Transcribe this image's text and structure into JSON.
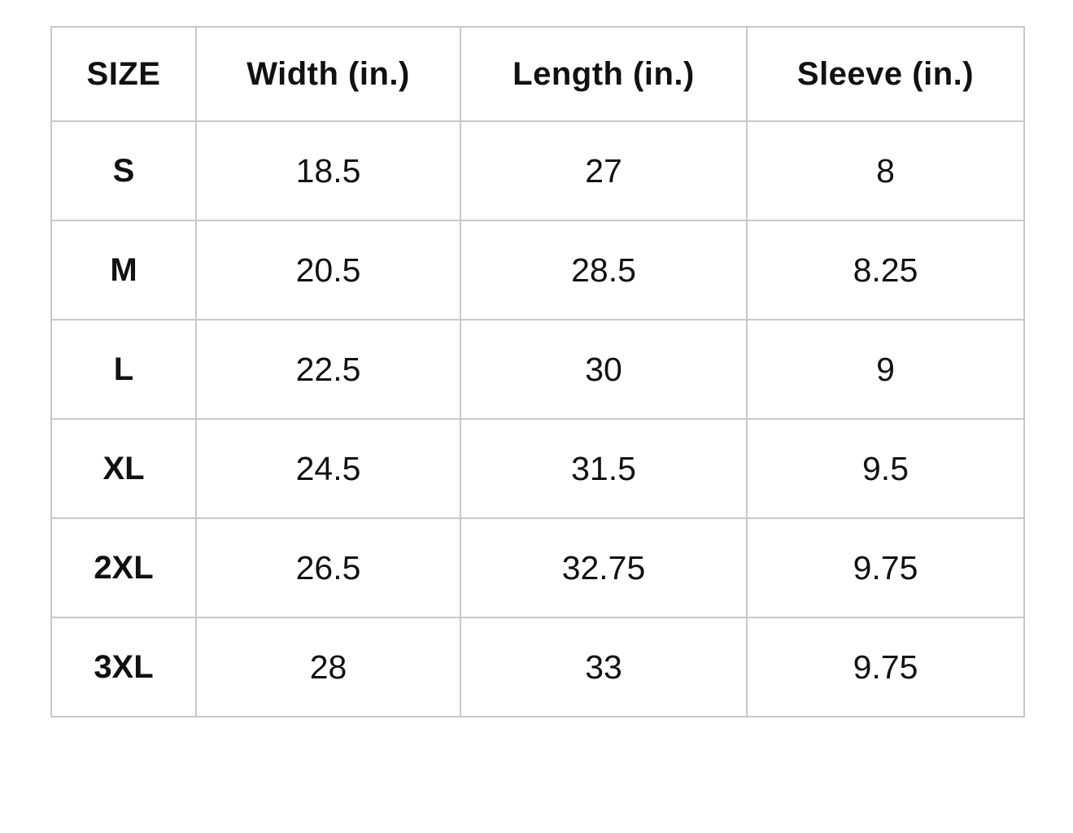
{
  "page": {
    "background_color": "#ffffff"
  },
  "table": {
    "border_color": "#c8c8c8",
    "text_color": "#111111",
    "header": {
      "cells": [
        "SIZE",
        "Width (in.)",
        "Length (in.)",
        "Sleeve (in.)"
      ]
    },
    "rows": [
      {
        "cells": [
          "S",
          "18.5",
          "27",
          "8"
        ]
      },
      {
        "cells": [
          "M",
          "20.5",
          "28.5",
          "8.25"
        ]
      },
      {
        "cells": [
          "L",
          "22.5",
          "30",
          "9"
        ]
      },
      {
        "cells": [
          "XL",
          "24.5",
          "31.5",
          "9.5"
        ]
      },
      {
        "cells": [
          "2XL",
          "26.5",
          "32.75",
          "9.75"
        ]
      },
      {
        "cells": [
          "3XL",
          "28",
          "33",
          "9.75"
        ]
      }
    ]
  },
  "chart_data": {
    "type": "table",
    "title": "",
    "columns": [
      "SIZE",
      "Width (in.)",
      "Length (in.)",
      "Sleeve (in.)"
    ],
    "rows": [
      [
        "S",
        18.5,
        27,
        8
      ],
      [
        "M",
        20.5,
        28.5,
        8.25
      ],
      [
        "L",
        22.5,
        30,
        9
      ],
      [
        "XL",
        24.5,
        31.5,
        9.5
      ],
      [
        "2XL",
        26.5,
        32.75,
        9.75
      ],
      [
        "3XL",
        28,
        33,
        9.75
      ]
    ],
    "layout_hints": {
      "grid": "on",
      "header_bold": true,
      "first_column_bold": true,
      "cell_alignment": "center"
    }
  }
}
